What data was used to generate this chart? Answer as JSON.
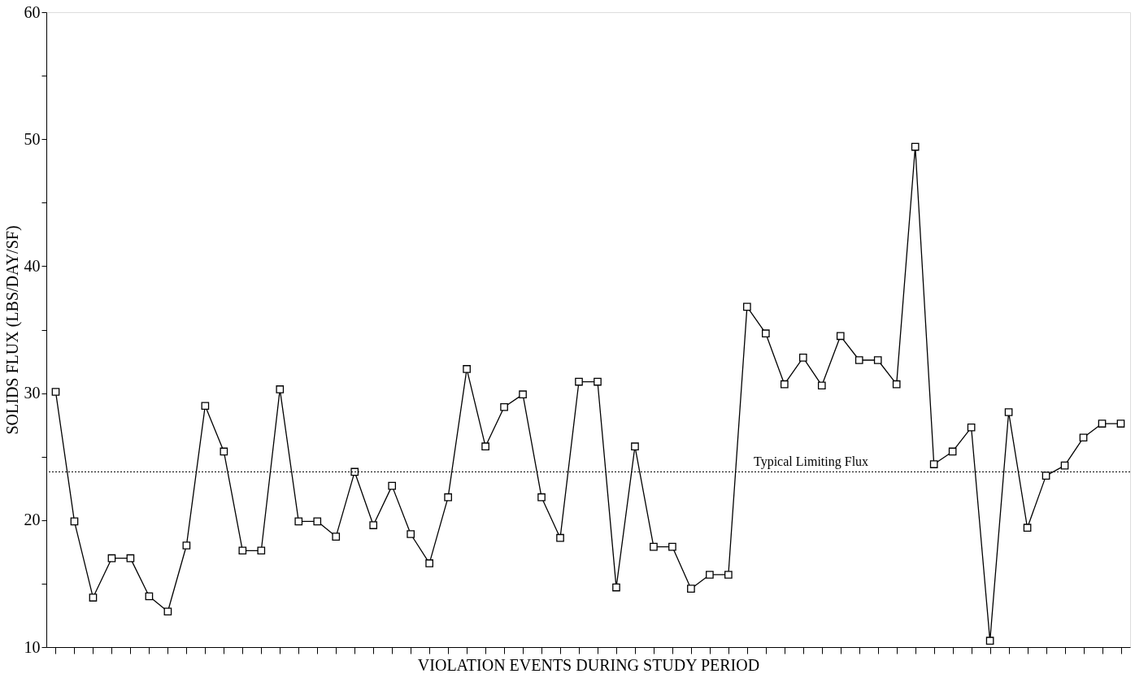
{
  "chart_data": {
    "type": "line",
    "xlabel": "VIOLATION EVENTS DURING STUDY PERIOD",
    "ylabel": "SOLIDS FLUX  (LBS/DAY/SF)",
    "categories": [
      null,
      null,
      null,
      null,
      null,
      null,
      null,
      null,
      null,
      null,
      null,
      null,
      null,
      null,
      null,
      null,
      null,
      null,
      null,
      null,
      null,
      null,
      null,
      null,
      null,
      null,
      null,
      null,
      null,
      null,
      null,
      null,
      null,
      null,
      null,
      null,
      null,
      null,
      null,
      null,
      null,
      null,
      null,
      null,
      null,
      null,
      null,
      null,
      null,
      null,
      null,
      null,
      null,
      null,
      null,
      null,
      null,
      null
    ],
    "series": [
      {
        "color": "#000000",
        "values": [
          30.1,
          19.9,
          13.9,
          17.0,
          17.0,
          14.0,
          12.8,
          18.0,
          29.0,
          25.4,
          17.6,
          17.6,
          30.3,
          19.9,
          19.9,
          18.7,
          23.8,
          19.6,
          22.7,
          18.9,
          16.6,
          21.8,
          31.9,
          25.8,
          28.9,
          29.9,
          21.8,
          18.6,
          30.9,
          30.9,
          14.7,
          25.8,
          17.9,
          17.9,
          14.6,
          15.7,
          15.7,
          36.8,
          34.7,
          30.7,
          32.8,
          30.6,
          34.5,
          32.6,
          32.6,
          30.7,
          49.4,
          24.4,
          25.4,
          27.3,
          10.5,
          28.5,
          19.4,
          23.5,
          24.3,
          26.5,
          27.6,
          27.6
        ]
      }
    ],
    "ylim": [
      10,
      60
    ],
    "yticks": [
      10,
      {
        "value": 15,
        "label": null
      },
      20,
      {
        "value": 25,
        "label": null
      },
      30,
      {
        "value": 35,
        "label": null
      },
      40,
      {
        "value": 45,
        "label": null
      },
      50,
      {
        "value": 55,
        "label": null
      },
      60
    ],
    "ref_lines": [
      {
        "axis": "y",
        "value": 23.8,
        "label": "Typical Limiting Flux",
        "line_style": "dotted",
        "color": "#000000"
      }
    ],
    "marker": "square",
    "line_style": "solid",
    "grid": false
  }
}
